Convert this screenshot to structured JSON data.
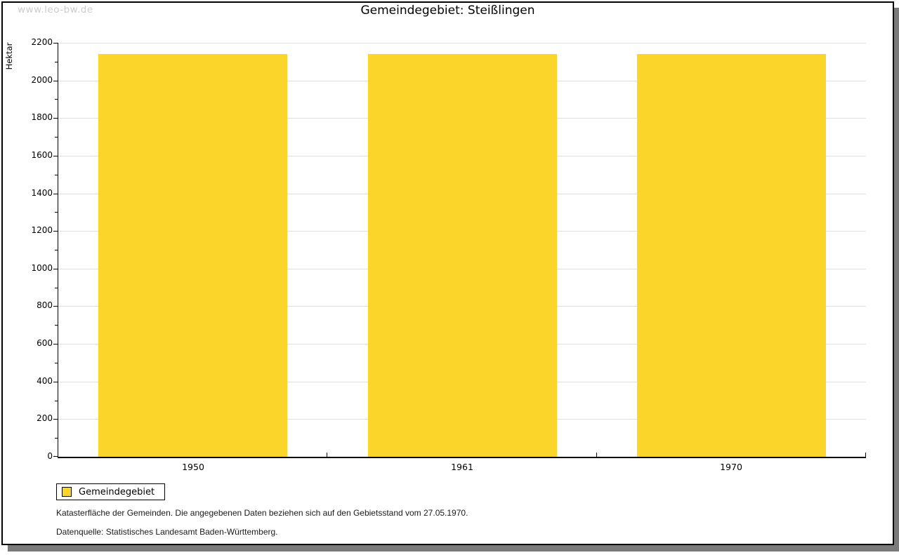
{
  "watermark": "www.leo-bw.de",
  "chart_data": {
    "type": "bar",
    "title": "Gemeindegebiet: Steißlingen",
    "categories": [
      "1950",
      "1961",
      "1970"
    ],
    "series": [
      {
        "name": "Gemeindegebiet",
        "values": [
          2141,
          2141,
          2141
        ]
      }
    ],
    "xlabel": "",
    "ylabel": "Hektar",
    "ylim": [
      0,
      2200
    ],
    "ytick_step": 200,
    "minor_tick_step": 100,
    "grid": true,
    "legend_position": "bottom-left",
    "bar_color": "#FCD52B",
    "grid_color": "#DFDFDF"
  },
  "legend": {
    "label": "Gemeindegebiet",
    "swatch_color": "#FCD52B"
  },
  "footnotes": [
    "Katasterfläche der Gemeinden. Die angegebenen Daten beziehen sich auf den Gebietsstand vom 27.05.1970.",
    "Datenquelle: Statistisches Landesamt Baden-Württemberg."
  ],
  "colors": {
    "axis": "#000000",
    "watermark": "#CCCCCC",
    "shadow": "#7A7A7A",
    "background": "#FFFFFF"
  }
}
